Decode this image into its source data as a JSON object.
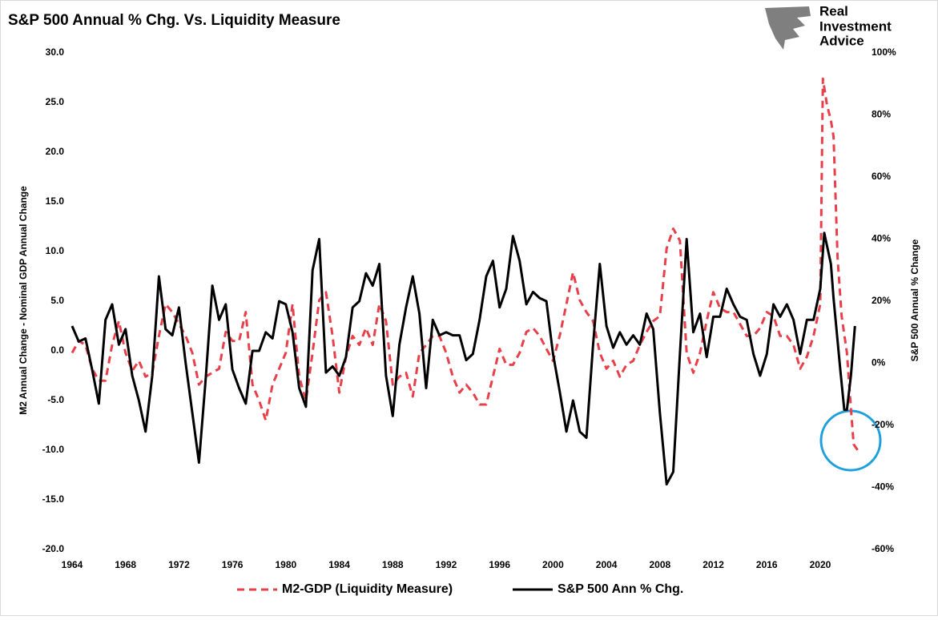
{
  "chart_data": {
    "type": "line",
    "title": "S&P 500 Annual % Chg. Vs. Liquidity Measure",
    "logo": [
      "Real",
      "Investment",
      "Advice"
    ],
    "ylabel": "M2 Annual Change - Nominal GDP Annual Change",
    "y2label": "S&P 500 Annual % Change",
    "xlim": [
      1964,
      2023
    ],
    "xticks": [
      1964,
      1968,
      1972,
      1976,
      1980,
      1984,
      1988,
      1992,
      1996,
      2000,
      2004,
      2008,
      2012,
      2016,
      2020
    ],
    "ylim": [
      -20,
      30
    ],
    "yticks": [
      {
        "value": -20,
        "label": "-20.0"
      },
      {
        "value": -15,
        "label": "-15.0"
      },
      {
        "value": -10,
        "label": "-10.0"
      },
      {
        "value": -5,
        "label": "-5.0"
      },
      {
        "value": 0,
        "label": "0.0"
      },
      {
        "value": 5,
        "label": "5.0"
      },
      {
        "value": 10,
        "label": "10.0"
      },
      {
        "value": 15,
        "label": "15.0"
      },
      {
        "value": 20,
        "label": "20.0"
      },
      {
        "value": 25,
        "label": "25.0"
      },
      {
        "value": 30,
        "label": "30.0"
      }
    ],
    "y2lim": [
      -60,
      100
    ],
    "y2ticks": [
      {
        "value": -60,
        "label": "-60%"
      },
      {
        "value": -40,
        "label": "-40%"
      },
      {
        "value": -20,
        "label": "-20%"
      },
      {
        "value": 0,
        "label": "0%"
      },
      {
        "value": 20,
        "label": "20%"
      },
      {
        "value": 40,
        "label": "40%"
      },
      {
        "value": 60,
        "label": "60%"
      },
      {
        "value": 80,
        "label": "80%"
      },
      {
        "value": 100,
        "label": "100%"
      }
    ],
    "series": [
      {
        "name": "M2-GDP (Liquidity Measure)",
        "color": "#e8404a",
        "dashed": true,
        "axis": "y",
        "x": [
          1964,
          1964.5,
          1965,
          1965.5,
          1966,
          1966.5,
          1967,
          1967.5,
          1968,
          1968.5,
          1969,
          1969.5,
          1970,
          1970.5,
          1971,
          1971.5,
          1972,
          1972.5,
          1973,
          1973.5,
          1974,
          1974.5,
          1975,
          1975.5,
          1976,
          1976.5,
          1977,
          1977.5,
          1978,
          1978.5,
          1979,
          1979.5,
          1980,
          1980.5,
          1981,
          1981.5,
          1982,
          1982.5,
          1983,
          1983.5,
          1984,
          1984.5,
          1985,
          1985.5,
          1986,
          1986.5,
          1987,
          1987.5,
          1988,
          1988.5,
          1989,
          1989.5,
          1990,
          1990.5,
          1991,
          1991.5,
          1992,
          1992.5,
          1993,
          1993.5,
          1994,
          1994.5,
          1995,
          1995.5,
          1996,
          1996.5,
          1997,
          1997.5,
          1998,
          1998.5,
          1999,
          1999.5,
          2000,
          2000.5,
          2001,
          2001.5,
          2002,
          2002.5,
          2003,
          2003.5,
          2004,
          2004.5,
          2005,
          2005.5,
          2006,
          2006.5,
          2007,
          2007.5,
          2008,
          2008.5,
          2009,
          2009.5,
          2010,
          2010.5,
          2011,
          2011.5,
          2012,
          2012.5,
          2013,
          2013.5,
          2014,
          2014.5,
          2015,
          2015.5,
          2016,
          2016.5,
          2017,
          2017.5,
          2018,
          2018.5,
          2019,
          2019.5,
          2020,
          2020.2,
          2020.5,
          2020.8,
          2021,
          2021.3,
          2021.6,
          2022,
          2022.3,
          2022.5,
          2022.8
        ],
        "values": [
          -0.2,
          1,
          0.6,
          -1.8,
          -3,
          -3,
          0.6,
          3,
          -0.2,
          -2,
          -1,
          -2.6,
          -2.2,
          1.5,
          4.7,
          3.9,
          2.7,
          1.5,
          -0.2,
          -3.4,
          -2.6,
          -2.2,
          -1.8,
          1.9,
          1,
          1,
          3.9,
          -3.4,
          -5,
          -7,
          -3.4,
          -1.8,
          -0.2,
          4.7,
          -2.6,
          -5,
          -0.2,
          5.1,
          5.9,
          1.5,
          -4.2,
          -0.6,
          1.5,
          0.6,
          2.3,
          0.6,
          4.7,
          3,
          -3.4,
          -2.6,
          -2.2,
          -4.6,
          -0.2,
          0.6,
          1.5,
          1.5,
          -0.2,
          -2.6,
          -4.2,
          -3.4,
          -4.2,
          -5.4,
          -5.4,
          -2.6,
          0.2,
          -1.4,
          -1.4,
          -0.2,
          1.9,
          2.3,
          1.5,
          0.2,
          -1,
          1.5,
          4.7,
          7.9,
          5.1,
          3.9,
          3,
          -0.2,
          -1.8,
          -1,
          -2.6,
          -1.4,
          -1,
          0.6,
          1.9,
          3,
          3.5,
          10.3,
          12.3,
          11.1,
          -0.2,
          -2.2,
          -0.2,
          3,
          5.9,
          4.3,
          3.9,
          3.9,
          2.7,
          1.5,
          1.5,
          2.3,
          3.9,
          3.5,
          1.5,
          1.5,
          0.6,
          -1.8,
          -0.6,
          1.5,
          4.7,
          27.4,
          24.8,
          23.2,
          21.6,
          9.4,
          3.5,
          -0.2,
          -5.8,
          -9.4,
          -10
        ]
      },
      {
        "name": "S&P 500 Ann % Chg.",
        "color": "#000000",
        "dashed": false,
        "axis": "y2",
        "x": [
          1964,
          1964.5,
          1965,
          1965.5,
          1966,
          1966.5,
          1967,
          1967.5,
          1968,
          1968.5,
          1969,
          1969.5,
          1970,
          1970.5,
          1971,
          1971.5,
          1972,
          1972.5,
          1973,
          1973.5,
          1974,
          1974.5,
          1975,
          1975.5,
          1976,
          1976.5,
          1977,
          1977.5,
          1978,
          1978.5,
          1979,
          1979.5,
          1980,
          1980.5,
          1981,
          1981.5,
          1982,
          1982.5,
          1983,
          1983.5,
          1984,
          1984.5,
          1985,
          1985.5,
          1986,
          1986.5,
          1987,
          1987.5,
          1988,
          1988.5,
          1989,
          1989.5,
          1990,
          1990.5,
          1991,
          1991.5,
          1992,
          1992.5,
          1993,
          1993.5,
          1994,
          1994.5,
          1995,
          1995.5,
          1996,
          1996.5,
          1997,
          1997.5,
          1998,
          1998.5,
          1999,
          1999.5,
          2000,
          2000.5,
          2001,
          2001.5,
          2002,
          2002.5,
          2003,
          2003.5,
          2004,
          2004.5,
          2005,
          2005.5,
          2006,
          2006.5,
          2007,
          2007.5,
          2008,
          2008.5,
          2009,
          2009.5,
          2010,
          2010.5,
          2011,
          2011.5,
          2012,
          2012.5,
          2013,
          2013.5,
          2014,
          2014.5,
          2015,
          2015.5,
          2016,
          2016.5,
          2017,
          2017.5,
          2018,
          2018.5,
          2019,
          2019.5,
          2020,
          2020.3,
          2020.8,
          2021,
          2021.5,
          2021.8,
          2022,
          2022.3,
          2022.6
        ],
        "values": [
          12,
          7,
          8,
          -2,
          -13,
          14,
          19,
          6,
          11,
          -4,
          -12,
          -22,
          -4,
          28,
          11,
          9,
          18,
          0,
          -16,
          -32,
          -5,
          25,
          14,
          19,
          -2,
          -8,
          -13,
          4,
          4,
          10,
          8,
          20,
          19,
          10,
          -8,
          -14,
          30,
          40,
          -3,
          -1,
          -4,
          2,
          18,
          20,
          29,
          25,
          32,
          -4,
          -17,
          6,
          18,
          28,
          16,
          -8,
          14,
          9,
          10,
          9,
          9,
          1,
          3,
          14,
          28,
          33,
          18,
          24,
          41,
          33,
          19,
          23,
          21,
          20,
          3,
          -9,
          -22,
          -12,
          -22,
          -24,
          6,
          32,
          12,
          5,
          10,
          6,
          9,
          6,
          16,
          11,
          -16,
          -39,
          -35,
          3,
          40,
          10,
          16,
          2,
          15,
          15,
          24,
          19,
          15,
          14,
          3,
          -4,
          3,
          19,
          15,
          19,
          14,
          3,
          14,
          14,
          24,
          42,
          32,
          21,
          -2,
          -15,
          -15,
          -4,
          12
        ]
      }
    ]
  }
}
